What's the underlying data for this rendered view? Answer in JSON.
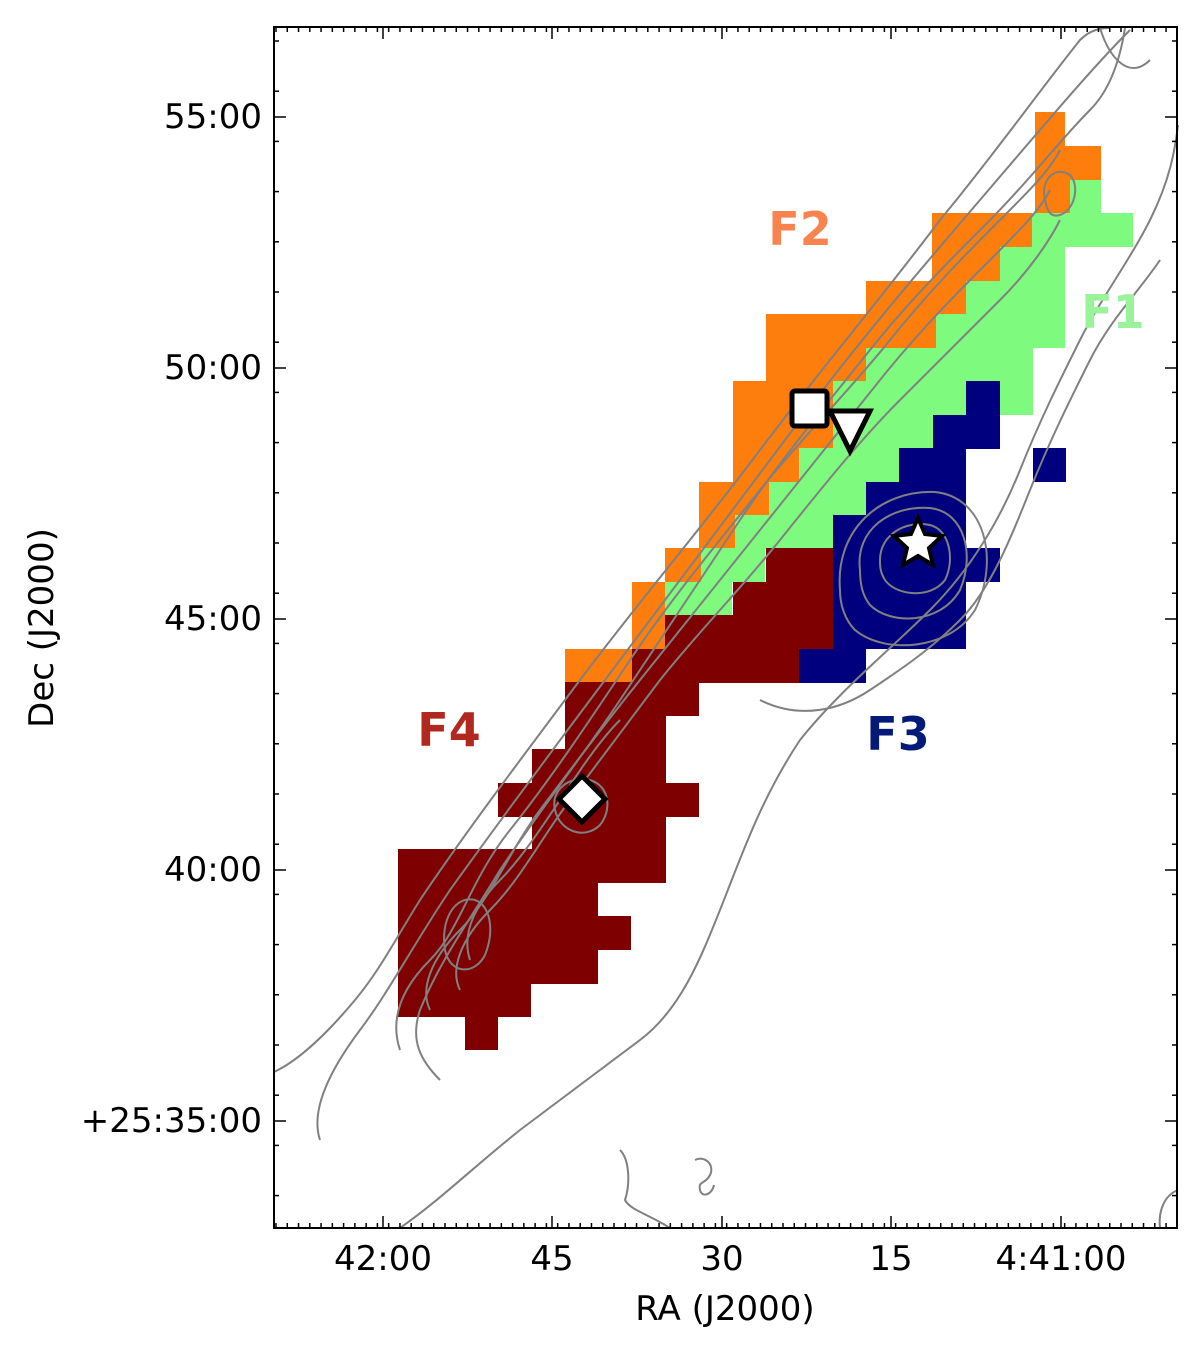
{
  "axes": {
    "xlabel": "RA (J2000)",
    "ylabel": "Dec (J2000)",
    "xticks": [
      "42:00",
      "45",
      "30",
      "15",
      "4:41:00"
    ],
    "yticks": [
      "55:00",
      "50:00",
      "45:00",
      "40:00",
      "+25:35:00"
    ]
  },
  "regions": [
    {
      "label": "F1",
      "color": "#7efb7e"
    },
    {
      "label": "F2",
      "color": "#fd7d0d"
    },
    {
      "label": "F3",
      "color": "#00007f"
    },
    {
      "label": "F4",
      "color": "#7f0000"
    }
  ],
  "region_label_colors": {
    "F1": "#9af29a",
    "F2": "#f9834f",
    "F3": "#031a78",
    "F4": "#b1281f"
  },
  "markers": [
    {
      "name": "square",
      "ra": "4:41:23",
      "dec": "+25:49:20"
    },
    {
      "name": "triangle",
      "ra": "4:41:19",
      "dec": "+25:48:55"
    },
    {
      "name": "star",
      "ra": "4:41:13",
      "dec": "+25:46:40"
    },
    {
      "name": "diamond",
      "ra": "4:41:46",
      "dec": "+25:41:25"
    }
  ],
  "contour_color": "#808080"
}
